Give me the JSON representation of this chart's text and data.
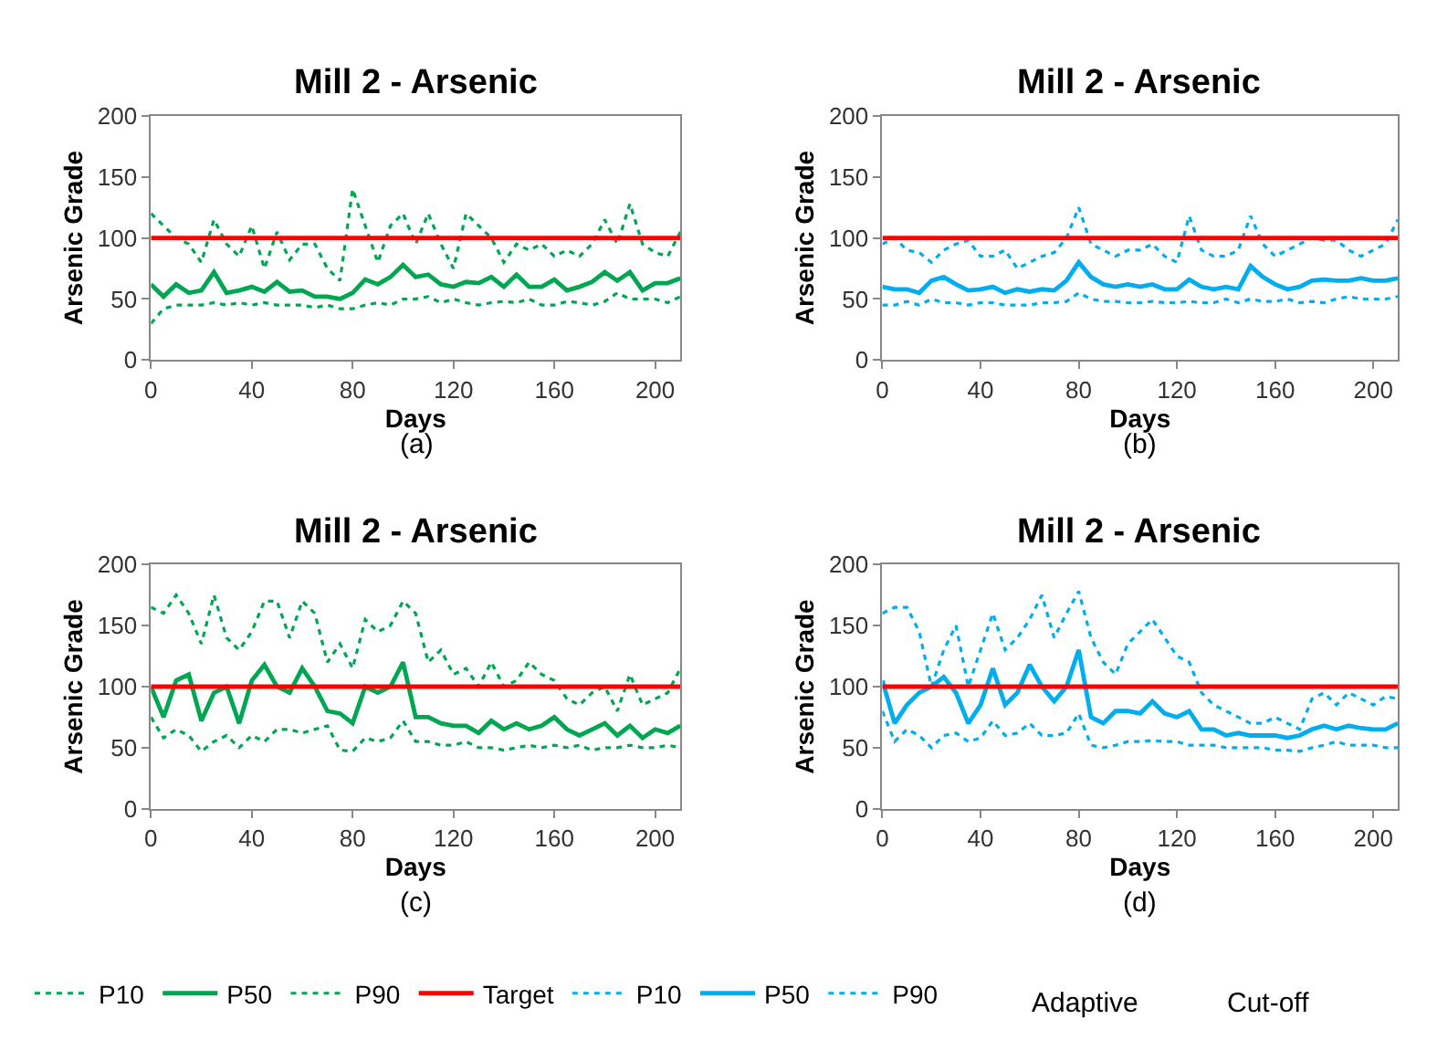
{
  "chart_data": [
    {
      "type": "line",
      "title": "Mill 2 - Arsenic",
      "xlabel": "Days",
      "ylabel": "Arsenic Grade",
      "annotations": [
        "(a)",
        "Cut-off"
      ],
      "x": [
        0,
        5,
        10,
        15,
        20,
        25,
        30,
        35,
        40,
        45,
        50,
        55,
        60,
        65,
        70,
        75,
        80,
        85,
        90,
        95,
        100,
        105,
        110,
        115,
        120,
        125,
        130,
        135,
        140,
        145,
        150,
        155,
        160,
        165,
        170,
        175,
        180,
        185,
        190,
        195,
        200,
        205,
        210
      ],
      "xlim": [
        0,
        210
      ],
      "xticks": [
        0,
        40,
        80,
        120,
        160,
        200
      ],
      "ylim": [
        0,
        200
      ],
      "yticks": [
        0,
        50,
        100,
        150,
        200
      ],
      "legend": "bottom",
      "ref_lines": [
        {
          "axis": "y",
          "value": 100,
          "label": "Target",
          "color": "#ff0000"
        }
      ],
      "series": [
        {
          "name": "P10",
          "color": "#00a651",
          "line_style": "dotted",
          "values": [
            30,
            42,
            45,
            45,
            45,
            47,
            45,
            47,
            45,
            47,
            45,
            45,
            45,
            43,
            45,
            42,
            42,
            45,
            47,
            45,
            50,
            50,
            52,
            47,
            50,
            47,
            45,
            47,
            48,
            47,
            50,
            45,
            45,
            48,
            47,
            45,
            48,
            55,
            50,
            50,
            50,
            47,
            52
          ]
        },
        {
          "name": "P50",
          "color": "#00a651",
          "line_style": "solid",
          "values": [
            62,
            52,
            62,
            55,
            57,
            72,
            55,
            57,
            60,
            56,
            64,
            56,
            57,
            52,
            52,
            50,
            55,
            66,
            62,
            68,
            78,
            68,
            70,
            62,
            60,
            64,
            63,
            68,
            60,
            70,
            60,
            60,
            66,
            57,
            60,
            64,
            72,
            65,
            72,
            57,
            63,
            63,
            67
          ]
        },
        {
          "name": "P90",
          "color": "#00a651",
          "line_style": "dotted",
          "values": [
            120,
            110,
            100,
            95,
            80,
            115,
            95,
            85,
            110,
            75,
            105,
            82,
            95,
            95,
            75,
            65,
            140,
            110,
            80,
            110,
            120,
            95,
            120,
            95,
            75,
            120,
            110,
            100,
            80,
            95,
            90,
            95,
            85,
            90,
            85,
            95,
            115,
            95,
            128,
            95,
            88,
            85,
            105
          ]
        }
      ]
    },
    {
      "type": "line",
      "title": "Mill 2 - Arsenic",
      "xlabel": "Days",
      "ylabel": "Arsenic Grade",
      "annotations": [
        "(b)",
        "Adaptive"
      ],
      "x": [
        0,
        5,
        10,
        15,
        20,
        25,
        30,
        35,
        40,
        45,
        50,
        55,
        60,
        65,
        70,
        75,
        80,
        85,
        90,
        95,
        100,
        105,
        110,
        115,
        120,
        125,
        130,
        135,
        140,
        145,
        150,
        155,
        160,
        165,
        170,
        175,
        180,
        185,
        190,
        195,
        200,
        205,
        210
      ],
      "xlim": [
        0,
        210
      ],
      "xticks": [
        0,
        40,
        80,
        120,
        160,
        200
      ],
      "ylim": [
        0,
        200
      ],
      "yticks": [
        0,
        50,
        100,
        150,
        200
      ],
      "legend": "bottom",
      "ref_lines": [
        {
          "axis": "y",
          "value": 100,
          "color": "#ff0000"
        }
      ],
      "series": [
        {
          "name": "P10",
          "color": "#00aeef",
          "line_style": "dotted",
          "values": [
            45,
            45,
            48,
            45,
            50,
            47,
            47,
            45,
            47,
            47,
            45,
            45,
            45,
            47,
            47,
            48,
            55,
            50,
            48,
            48,
            47,
            47,
            48,
            47,
            47,
            48,
            47,
            47,
            50,
            47,
            50,
            48,
            48,
            50,
            47,
            48,
            47,
            50,
            52,
            50,
            50,
            50,
            52
          ]
        },
        {
          "name": "P50",
          "color": "#00aeef",
          "line_style": "solid",
          "values": [
            60,
            58,
            58,
            55,
            65,
            68,
            62,
            57,
            58,
            60,
            55,
            58,
            56,
            58,
            57,
            65,
            80,
            68,
            62,
            60,
            62,
            60,
            62,
            58,
            58,
            66,
            60,
            58,
            60,
            58,
            77,
            68,
            62,
            58,
            60,
            65,
            66,
            65,
            65,
            67,
            65,
            65,
            67
          ]
        },
        {
          "name": "P90",
          "color": "#00aeef",
          "line_style": "dotted",
          "values": [
            95,
            100,
            90,
            88,
            80,
            90,
            95,
            98,
            85,
            85,
            90,
            75,
            80,
            85,
            88,
            100,
            125,
            95,
            90,
            85,
            90,
            90,
            95,
            85,
            80,
            118,
            90,
            85,
            85,
            90,
            118,
            95,
            85,
            90,
            95,
            100,
            98,
            98,
            90,
            85,
            90,
            95,
            115
          ]
        }
      ]
    },
    {
      "type": "line",
      "title": "Mill 2 - Arsenic",
      "xlabel": "Days",
      "ylabel": "Arsenic Grade",
      "annotations": [
        "(c)"
      ],
      "x": [
        0,
        5,
        10,
        15,
        20,
        25,
        30,
        35,
        40,
        45,
        50,
        55,
        60,
        65,
        70,
        75,
        80,
        85,
        90,
        95,
        100,
        105,
        110,
        115,
        120,
        125,
        130,
        135,
        140,
        145,
        150,
        155,
        160,
        165,
        170,
        175,
        180,
        185,
        190,
        195,
        200,
        205,
        210
      ],
      "xlim": [
        0,
        210
      ],
      "xticks": [
        0,
        40,
        80,
        120,
        160,
        200
      ],
      "ylim": [
        0,
        200
      ],
      "yticks": [
        0,
        50,
        100,
        150,
        200
      ],
      "legend": "bottom",
      "ref_lines": [
        {
          "axis": "y",
          "value": 100,
          "color": "#ff0000"
        }
      ],
      "series": [
        {
          "color": "#00a651",
          "line_style": "dotted",
          "values": [
            75,
            58,
            65,
            60,
            47,
            55,
            60,
            50,
            60,
            55,
            65,
            65,
            62,
            65,
            68,
            48,
            47,
            58,
            55,
            58,
            72,
            55,
            55,
            52,
            52,
            55,
            50,
            50,
            48,
            50,
            52,
            50,
            52,
            50,
            52,
            48,
            50,
            50,
            52,
            50,
            50,
            52,
            50
          ]
        },
        {
          "color": "#00a651",
          "line_style": "solid",
          "values": [
            100,
            75,
            105,
            110,
            72,
            95,
            100,
            70,
            105,
            118,
            100,
            95,
            115,
            100,
            80,
            78,
            70,
            100,
            95,
            100,
            120,
            75,
            75,
            70,
            68,
            68,
            62,
            72,
            65,
            70,
            65,
            68,
            75,
            65,
            60,
            65,
            70,
            60,
            68,
            58,
            65,
            62,
            68
          ]
        },
        {
          "color": "#00a651",
          "line_style": "dotted",
          "values": [
            165,
            160,
            175,
            160,
            135,
            175,
            140,
            130,
            145,
            170,
            170,
            140,
            170,
            160,
            120,
            135,
            115,
            155,
            145,
            150,
            170,
            160,
            120,
            130,
            110,
            115,
            100,
            120,
            100,
            105,
            120,
            110,
            105,
            90,
            85,
            95,
            100,
            80,
            110,
            85,
            90,
            95,
            115
          ]
        }
      ]
    },
    {
      "type": "line",
      "title": "Mill 2 - Arsenic",
      "xlabel": "Days",
      "ylabel": "Arsenic Grade",
      "annotations": [
        "(d)"
      ],
      "x": [
        0,
        5,
        10,
        15,
        20,
        25,
        30,
        35,
        40,
        45,
        50,
        55,
        60,
        65,
        70,
        75,
        80,
        85,
        90,
        95,
        100,
        105,
        110,
        115,
        120,
        125,
        130,
        135,
        140,
        145,
        150,
        155,
        160,
        165,
        170,
        175,
        180,
        185,
        190,
        195,
        200,
        205,
        210
      ],
      "xlim": [
        0,
        210
      ],
      "xticks": [
        0,
        40,
        80,
        120,
        160,
        200
      ],
      "ylim": [
        0,
        200
      ],
      "yticks": [
        0,
        50,
        100,
        150,
        200
      ],
      "legend": "bottom",
      "ref_lines": [
        {
          "axis": "y",
          "value": 100,
          "color": "#ff0000"
        }
      ],
      "series": [
        {
          "color": "#00aeef",
          "line_style": "dotted",
          "values": [
            80,
            55,
            65,
            60,
            50,
            60,
            62,
            55,
            58,
            72,
            60,
            62,
            70,
            60,
            60,
            62,
            78,
            52,
            50,
            52,
            55,
            55,
            56,
            55,
            55,
            52,
            52,
            52,
            50,
            50,
            50,
            50,
            48,
            48,
            47,
            50,
            52,
            55,
            52,
            52,
            52,
            50,
            50
          ]
        },
        {
          "color": "#00aeef",
          "line_style": "solid",
          "values": [
            105,
            70,
            85,
            95,
            100,
            108,
            95,
            70,
            85,
            115,
            85,
            95,
            118,
            100,
            88,
            100,
            130,
            75,
            70,
            80,
            80,
            78,
            88,
            78,
            75,
            80,
            65,
            65,
            60,
            62,
            60,
            60,
            60,
            58,
            60,
            65,
            68,
            65,
            68,
            66,
            65,
            65,
            70
          ]
        },
        {
          "color": "#00aeef",
          "line_style": "dotted",
          "values": [
            160,
            165,
            165,
            145,
            100,
            130,
            150,
            100,
            130,
            160,
            130,
            140,
            155,
            175,
            140,
            160,
            178,
            140,
            120,
            110,
            135,
            145,
            155,
            140,
            125,
            120,
            95,
            85,
            80,
            75,
            70,
            70,
            75,
            70,
            65,
            90,
            95,
            85,
            95,
            90,
            85,
            92,
            90
          ]
        }
      ]
    }
  ]
}
